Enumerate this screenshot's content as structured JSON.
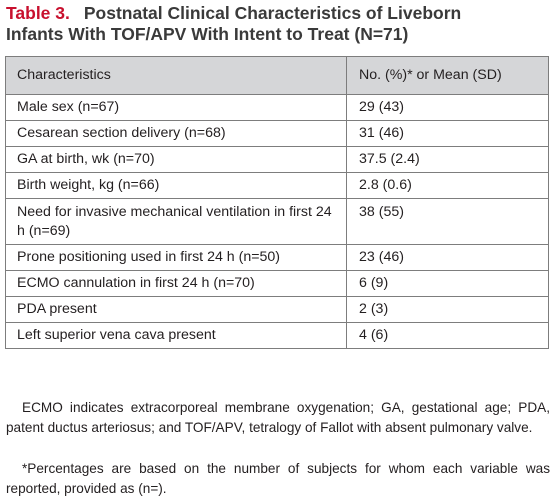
{
  "title": {
    "label": "Table 3.",
    "text_line1": "Postnatal Clinical Characteristics of Liveborn",
    "text_line2": "Infants With TOF/APV With Intent to Treat (N=71)"
  },
  "table": {
    "headers": [
      "Characteristics",
      "No. (%)* or Mean (SD)"
    ],
    "rows": [
      [
        "Male sex (n=67)",
        "29 (43)"
      ],
      [
        "Cesarean section delivery (n=68)",
        "31 (46)"
      ],
      [
        "GA at birth, wk (n=70)",
        "37.5 (2.4)"
      ],
      [
        "Birth weight, kg (n=66)",
        "2.8 (0.6)"
      ],
      [
        "Need for invasive mechanical ventilation in first 24 h (n=69)",
        "38 (55)"
      ],
      [
        "Prone positioning used in first 24 h (n=50)",
        "23 (46)"
      ],
      [
        "ECMO cannulation in first 24 h (n=70)",
        "6 (9)"
      ],
      [
        "PDA present",
        "2 (3)"
      ],
      [
        "Left superior vena cava present",
        "4 (6)"
      ]
    ]
  },
  "footnotes": {
    "abbreviations": "ECMO indicates extracorporeal membrane oxygenation; GA, gestational age; PDA, patent ductus arteriosus; and TOF/APV, tetralogy of Fallot with absent pulmonary valve.",
    "asterisk": "*Percentages are based on the number of subjects for whom each variable was reported, provided as (n=)."
  }
}
